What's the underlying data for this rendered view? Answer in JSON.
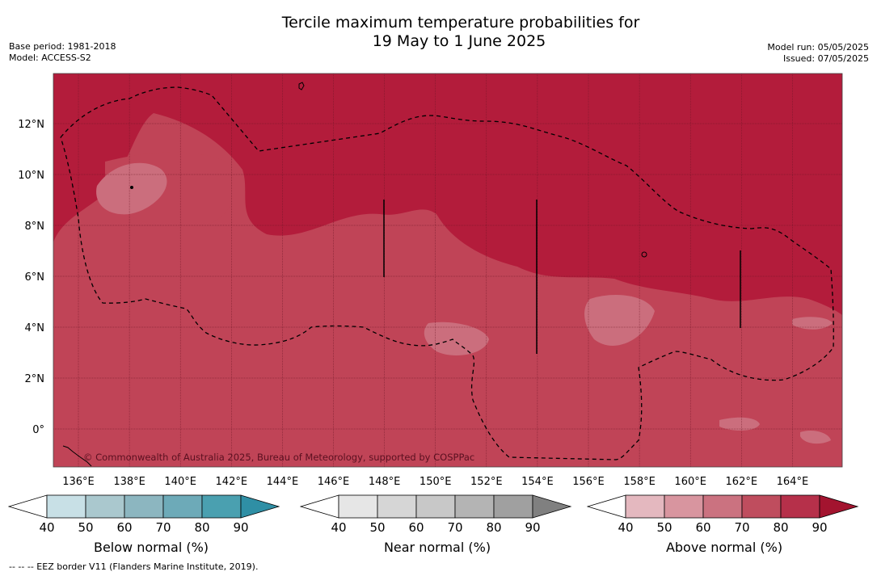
{
  "title_line1": "Tercile maximum temperature probabilities for",
  "title_line2": "19 May to 1 June 2025",
  "meta_left": [
    "Base period: 1981-2018",
    "Model: ACCESS-S2"
  ],
  "meta_right": [
    "Model run: 05/05/2025",
    "Issued: 07/05/2025"
  ],
  "map": {
    "lat_labels": [
      "12°N",
      "10°N",
      "8°N",
      "6°N",
      "4°N",
      "2°N",
      "0°"
    ],
    "lon_labels": [
      "136°E",
      "138°E",
      "140°E",
      "142°E",
      "144°E",
      "146°E",
      "148°E",
      "150°E",
      "152°E",
      "154°E",
      "156°E",
      "158°E",
      "160°E",
      "162°E",
      "164°E"
    ],
    "copyright": "© Commonwealth of Australia 2025, Bureau of Meteorology, supported by COSPPac",
    "colors": {
      "above_90": "#b31c3b",
      "above_80": "#c04457",
      "above_70": "#cb6e7d"
    }
  },
  "colorbars": [
    {
      "title": "Below normal (%)",
      "ticks": [
        "40",
        "50",
        "60",
        "70",
        "80",
        "90"
      ],
      "colors": [
        "#ffffff",
        "#c8e0e6",
        "#aac8ce",
        "#8cb6c0",
        "#6daab8",
        "#4aa0b0",
        "#2f8fa5"
      ]
    },
    {
      "title": "Near normal (%)",
      "ticks": [
        "40",
        "50",
        "60",
        "70",
        "80",
        "90"
      ],
      "colors": [
        "#ffffff",
        "#e6e6e6",
        "#d6d6d6",
        "#c8c8c8",
        "#b4b4b4",
        "#a0a0a0",
        "#808080"
      ]
    },
    {
      "title": "Above normal (%)",
      "ticks": [
        "40",
        "50",
        "60",
        "70",
        "80",
        "90"
      ],
      "colors": [
        "#ffffff",
        "#e4b8bf",
        "#d8959f",
        "#cb7280",
        "#bf4d5e",
        "#b6304a",
        "#a3142f"
      ]
    }
  ],
  "footer": "--  --  -- EEZ border V11 (Flanders Marine Institute, 2019)."
}
